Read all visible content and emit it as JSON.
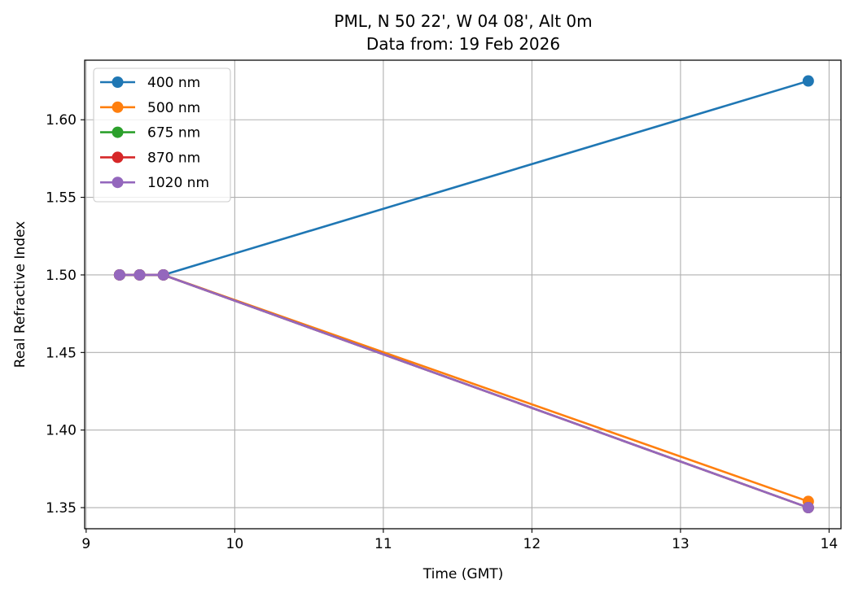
{
  "chart_data": {
    "type": "line",
    "title": "PML, N 50 22', W 04 08', Alt 0m",
    "subtitle": "Data from: 19 Feb 2026",
    "xlabel": "Time (GMT)",
    "ylabel": "Real Refractive Index",
    "xlim": [
      8.99,
      14.08
    ],
    "ylim": [
      1.3364,
      1.6384
    ],
    "xticks": [
      9,
      10,
      11,
      12,
      13,
      14
    ],
    "xtick_labels": [
      "9",
      "10",
      "11",
      "12",
      "13",
      "14"
    ],
    "yticks": [
      1.35,
      1.4,
      1.45,
      1.5,
      1.55,
      1.6
    ],
    "ytick_labels": [
      "1.35",
      "1.40",
      "1.45",
      "1.50",
      "1.55",
      "1.60"
    ],
    "grid": true,
    "legend_position": "top-left",
    "x": [
      9.225,
      9.36,
      9.52,
      13.86
    ],
    "series": [
      {
        "name": "400 nm",
        "color": "#1f77b4",
        "values": [
          1.5,
          1.5,
          1.5,
          1.625
        ]
      },
      {
        "name": "500 nm",
        "color": "#ff7f0e",
        "values": [
          1.5,
          1.5,
          1.5,
          1.354
        ]
      },
      {
        "name": "675 nm",
        "color": "#2ca02c",
        "values": [
          1.5,
          1.5,
          1.5,
          1.35
        ]
      },
      {
        "name": "870 nm",
        "color": "#d62728",
        "values": [
          1.5,
          1.5,
          1.5,
          1.35
        ]
      },
      {
        "name": "1020 nm",
        "color": "#9467bd",
        "values": [
          1.5,
          1.5,
          1.5,
          1.35
        ]
      }
    ]
  }
}
